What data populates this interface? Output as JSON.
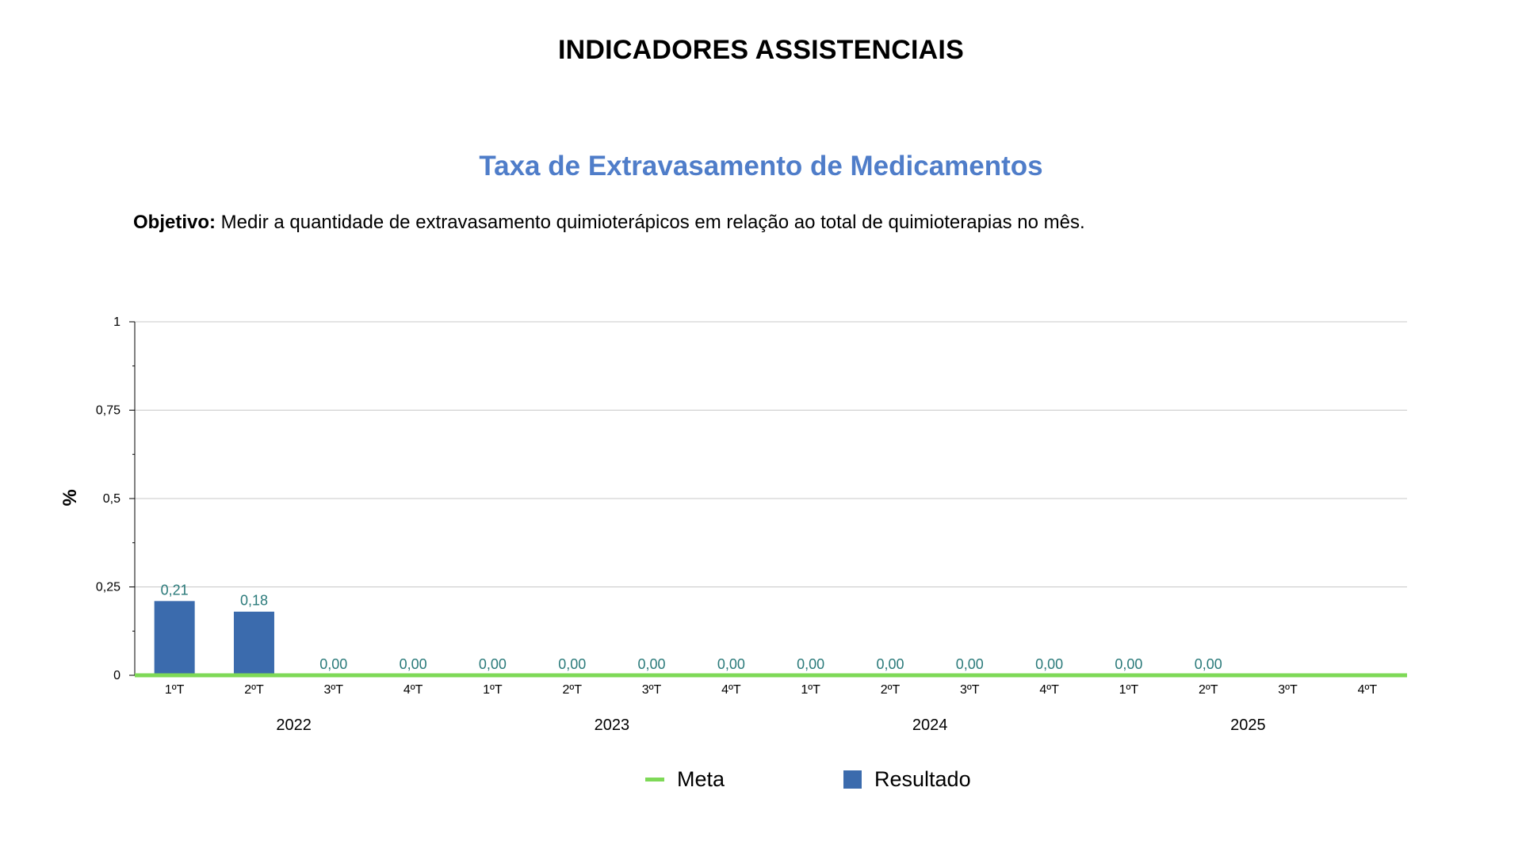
{
  "page": {
    "header": "INDICADORES ASSISTENCIAIS",
    "title": "Taxa de Extravasamento de Medicamentos",
    "objective_label": "Objetivo:",
    "objective_text": " Medir a quantidade de extravasamento quimioterápicos em relação ao total de quimioterapias no mês."
  },
  "colors": {
    "title": "#4f7dc9",
    "bar": "#3b6bad",
    "meta": "#7ed957",
    "data_label": "#2a7a7a",
    "grid": "#c8c8c8"
  },
  "chart_data": {
    "type": "bar",
    "title": "Taxa de Extravasamento de Medicamentos",
    "ylabel": "%",
    "xlabel": "",
    "ylim": [
      0,
      1
    ],
    "yticks": [
      0,
      0.25,
      0.5,
      0.75,
      1
    ],
    "ytick_labels": [
      "0",
      "0,25",
      "0,5",
      "0,75",
      "1"
    ],
    "grid": true,
    "legend_position": "bottom",
    "categories": [
      "1ºT",
      "2ºT",
      "3ºT",
      "4ºT",
      "1ºT",
      "2ºT",
      "3ºT",
      "4ºT",
      "1ºT",
      "2ºT",
      "3ºT",
      "4ºT",
      "1ºT",
      "2ºT",
      "3ºT",
      "4ºT"
    ],
    "groups": [
      {
        "label": "2022",
        "count": 4
      },
      {
        "label": "2023",
        "count": 4
      },
      {
        "label": "2024",
        "count": 4
      },
      {
        "label": "2025",
        "count": 4
      }
    ],
    "series": [
      {
        "name": "Meta",
        "type": "line",
        "values": [
          0,
          0,
          0,
          0,
          0,
          0,
          0,
          0,
          0,
          0,
          0,
          0,
          0,
          0,
          0,
          0
        ]
      },
      {
        "name": "Resultado",
        "type": "bar",
        "values": [
          0.21,
          0.18,
          0.0,
          0.0,
          0.0,
          0.0,
          0.0,
          0.0,
          0.0,
          0.0,
          0.0,
          0.0,
          0.0,
          0.0,
          null,
          null
        ],
        "labels": [
          "0,21",
          "0,18",
          "0,00",
          "0,00",
          "0,00",
          "0,00",
          "0,00",
          "0,00",
          "0,00",
          "0,00",
          "0,00",
          "0,00",
          "0,00",
          "0,00",
          "",
          ""
        ]
      }
    ]
  }
}
